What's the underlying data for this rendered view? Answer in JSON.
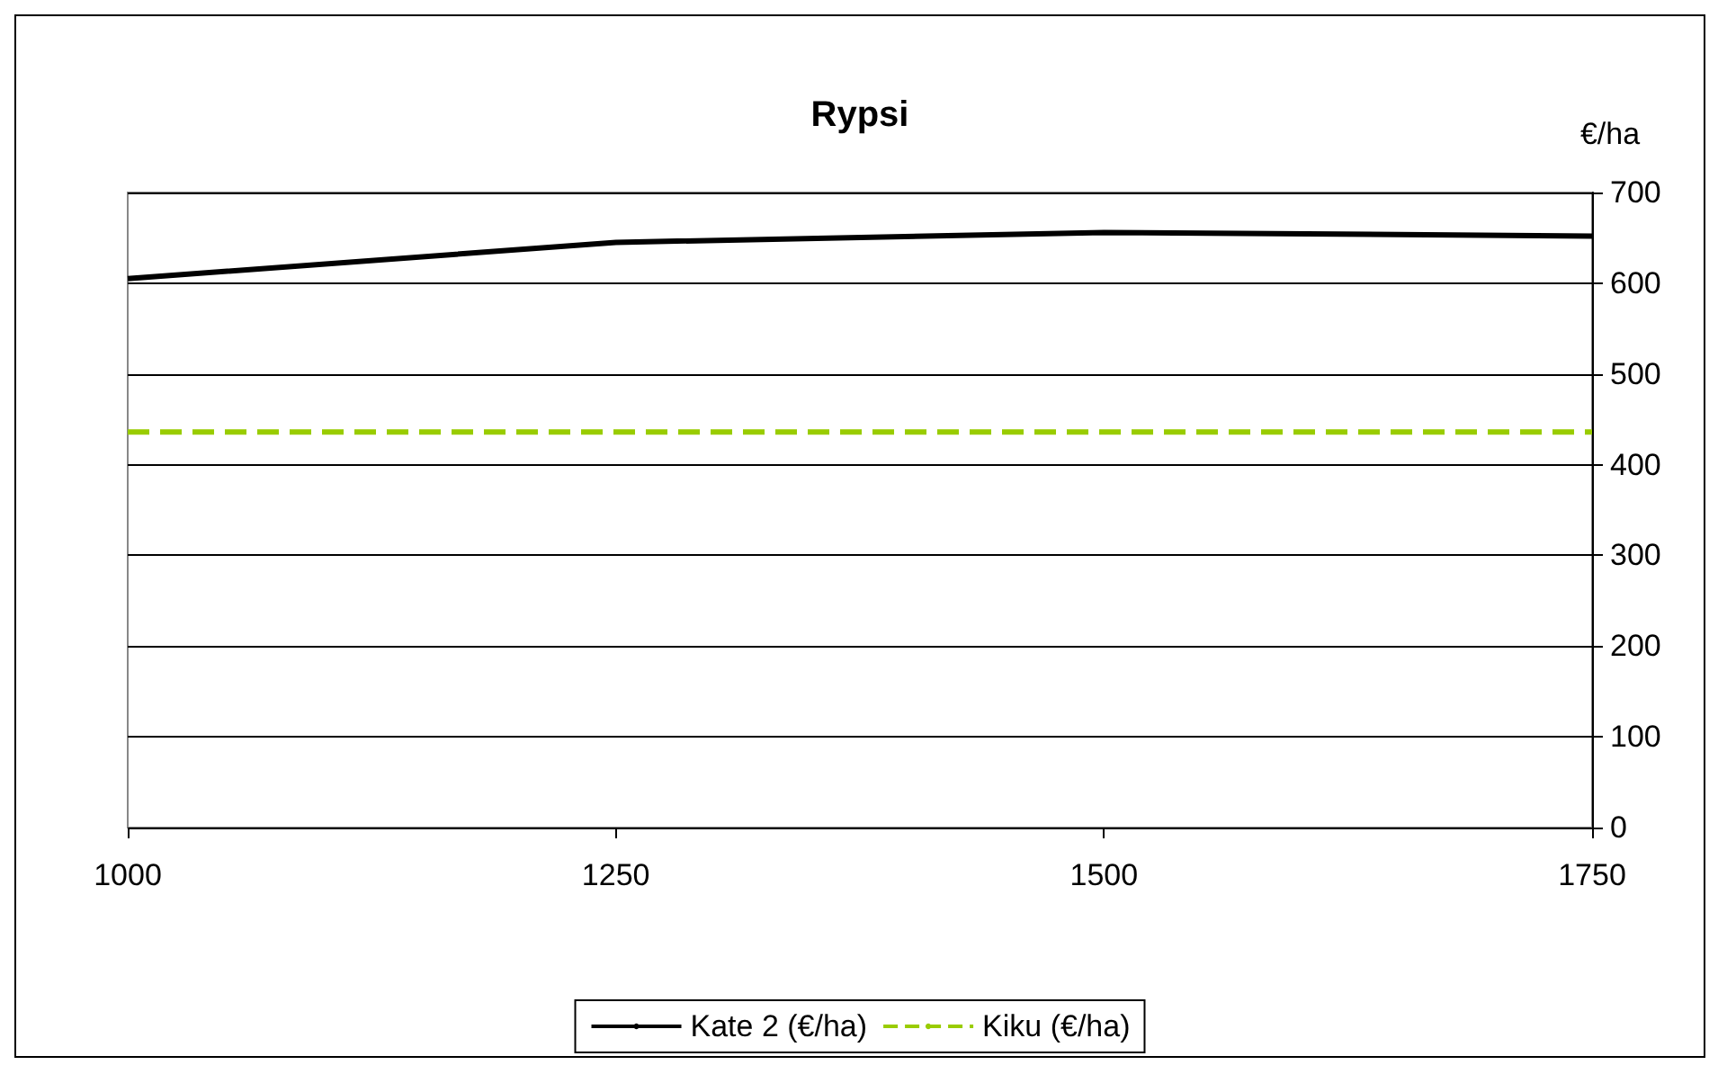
{
  "chart_data": {
    "type": "line",
    "title": "Rypsi",
    "ylabel": "€/ha",
    "x": [
      1000,
      1250,
      1500,
      1750
    ],
    "series": [
      {
        "name": "Kate 2 (€/ha)",
        "color": "#000000",
        "values": [
          605,
          645,
          656,
          652
        ]
      },
      {
        "name": "Kiku (€/ha)",
        "color": "#99cc00",
        "values": [
          436,
          436,
          436,
          436
        ],
        "line_style": "dashed"
      }
    ],
    "xlim": [
      1000,
      1750
    ],
    "xticks": [
      1000,
      1250,
      1500,
      1750
    ],
    "ylim": [
      0,
      700
    ],
    "yticks": [
      0,
      100,
      200,
      300,
      400,
      500,
      600,
      700
    ],
    "grid": "y",
    "legend": "bottom",
    "marker": "none",
    "line_style": "solid"
  }
}
